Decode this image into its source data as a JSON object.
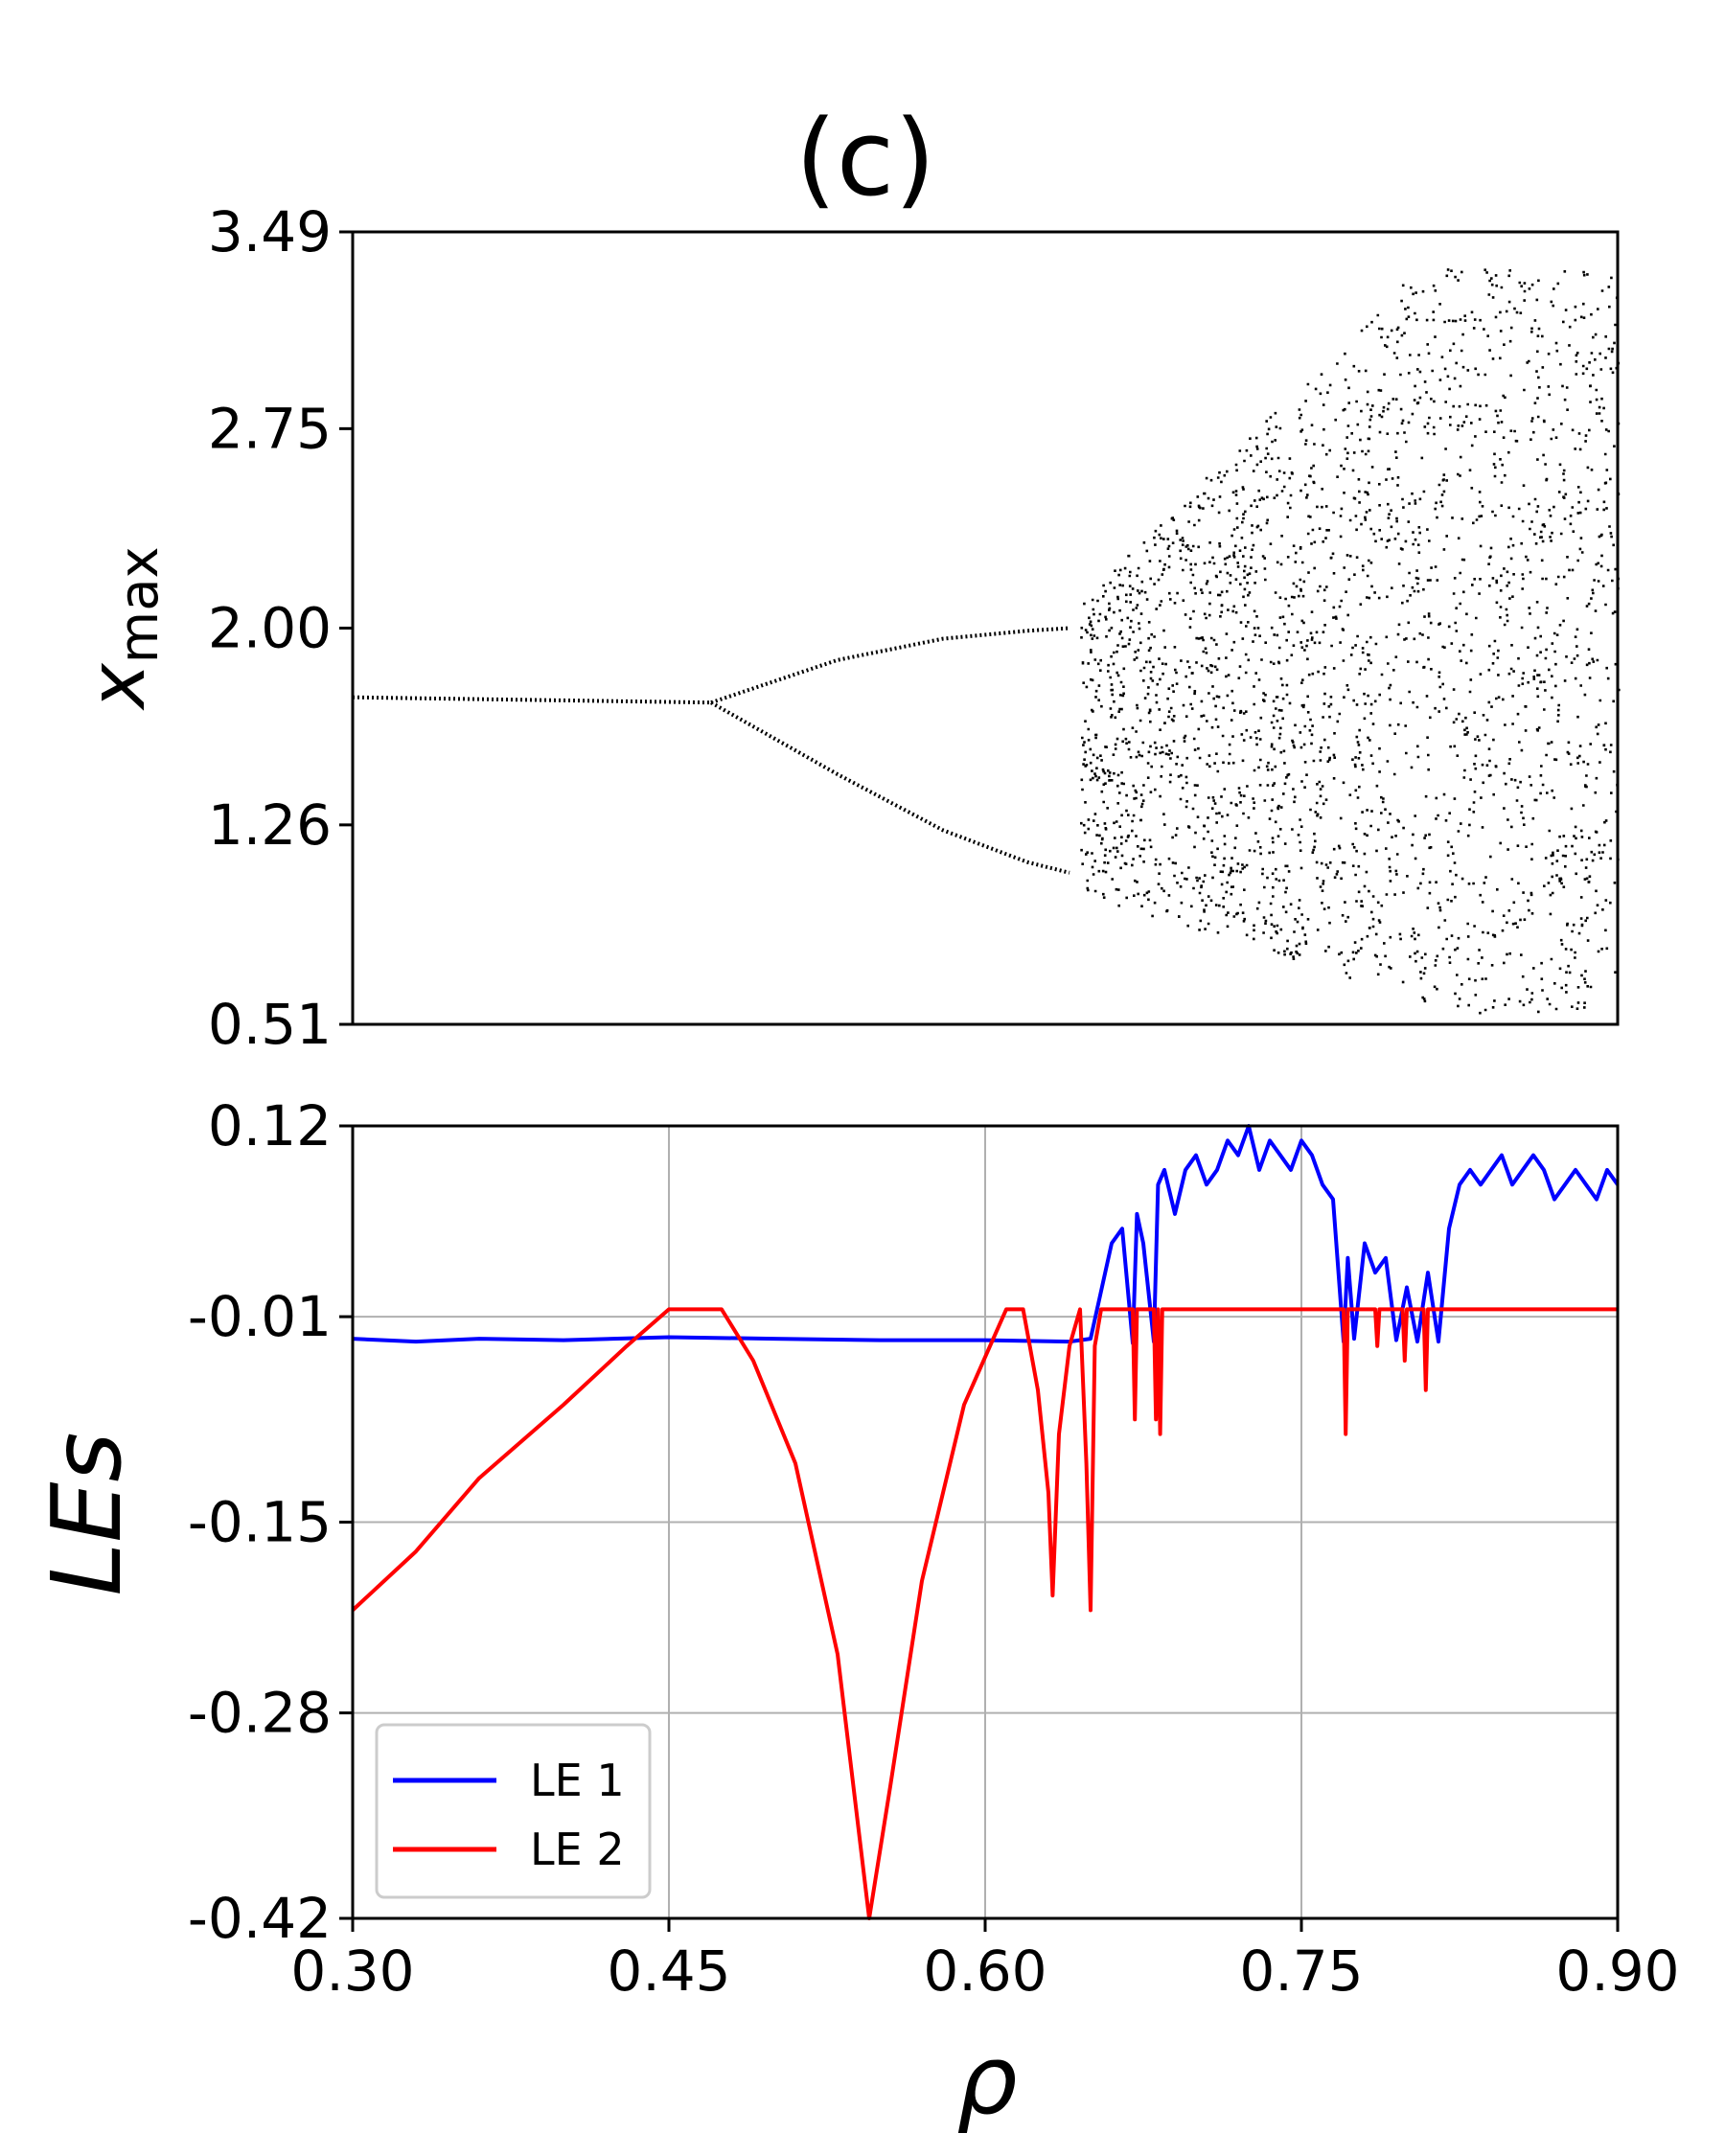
{
  "title": "(c)",
  "colors": {
    "le1": "#0000ff",
    "le2": "#ff0000",
    "points": "#000000",
    "grid": "#b0b0b0"
  },
  "chart_data": [
    {
      "type": "scatter",
      "name": "bifurcation",
      "xlabel": "",
      "ylabel_main": "x",
      "ylabel_sub": "max",
      "xlim": [
        0.3,
        0.9
      ],
      "ylim": [
        0.51,
        3.49
      ],
      "yticks": [
        "3.49",
        "2.75",
        "2.00",
        "1.26",
        "0.51"
      ],
      "ytick_values": [
        3.49,
        2.75,
        2.0,
        1.26,
        0.51
      ],
      "grid": false,
      "branches": [
        {
          "x": [
            0.3,
            0.47
          ],
          "y": [
            1.74,
            1.72
          ]
        },
        {
          "x": [
            0.47,
            0.53,
            0.58,
            0.62,
            0.64
          ],
          "y": [
            1.72,
            1.88,
            1.96,
            1.99,
            2.0
          ]
        },
        {
          "x": [
            0.47,
            0.53,
            0.58,
            0.62,
            0.64
          ],
          "y": [
            1.72,
            1.45,
            1.24,
            1.12,
            1.08
          ]
        }
      ],
      "chaos_region": {
        "x_start": 0.645,
        "x_end": 0.9,
        "y_range": [
          0.55,
          3.35
        ]
      }
    },
    {
      "type": "line",
      "name": "lyapunov",
      "xlabel": "ρ",
      "ylabel": "LEs",
      "xlim": [
        0.3,
        0.9
      ],
      "ylim": [
        -0.42,
        0.12
      ],
      "xticks": [
        "0.30",
        "0.45",
        "0.60",
        "0.75",
        "0.90"
      ],
      "xtick_values": [
        0.3,
        0.45,
        0.6,
        0.75,
        0.9
      ],
      "yticks": [
        "0.12",
        "-0.01",
        "-0.15",
        "-0.28",
        "-0.42"
      ],
      "ytick_values": [
        0.12,
        -0.01,
        -0.15,
        -0.28,
        -0.42
      ],
      "grid": true,
      "legend_position": "lower-left",
      "series": [
        {
          "name": "LE 1",
          "x": [
            0.3,
            0.33,
            0.36,
            0.4,
            0.45,
            0.5,
            0.55,
            0.6,
            0.64,
            0.65,
            0.66,
            0.665,
            0.67,
            0.672,
            0.675,
            0.68,
            0.682,
            0.685,
            0.69,
            0.695,
            0.7,
            0.705,
            0.71,
            0.715,
            0.72,
            0.725,
            0.73,
            0.735,
            0.74,
            0.745,
            0.75,
            0.755,
            0.76,
            0.765,
            0.77,
            0.772,
            0.775,
            0.78,
            0.785,
            0.79,
            0.795,
            0.8,
            0.805,
            0.81,
            0.815,
            0.82,
            0.825,
            0.83,
            0.835,
            0.84,
            0.845,
            0.85,
            0.855,
            0.86,
            0.865,
            0.87,
            0.875,
            0.88,
            0.885,
            0.89,
            0.895,
            0.9
          ],
          "y": [
            -0.025,
            -0.027,
            -0.025,
            -0.026,
            -0.024,
            -0.025,
            -0.026,
            -0.026,
            -0.027,
            -0.025,
            0.04,
            0.05,
            -0.028,
            0.06,
            0.04,
            -0.027,
            0.08,
            0.09,
            0.06,
            0.09,
            0.1,
            0.08,
            0.09,
            0.11,
            0.1,
            0.12,
            0.09,
            0.11,
            0.1,
            0.09,
            0.11,
            0.1,
            0.08,
            0.07,
            -0.027,
            0.03,
            -0.025,
            0.04,
            0.02,
            0.03,
            -0.026,
            0.01,
            -0.027,
            0.02,
            -0.027,
            0.05,
            0.08,
            0.09,
            0.08,
            0.09,
            0.1,
            0.08,
            0.09,
            0.1,
            0.09,
            0.07,
            0.08,
            0.09,
            0.08,
            0.07,
            0.09,
            0.08
          ]
        },
        {
          "name": "LE 2",
          "x": [
            0.3,
            0.33,
            0.36,
            0.4,
            0.43,
            0.45,
            0.475,
            0.49,
            0.51,
            0.53,
            0.545,
            0.555,
            0.57,
            0.59,
            0.61,
            0.618,
            0.625,
            0.63,
            0.632,
            0.635,
            0.64,
            0.645,
            0.648,
            0.65,
            0.652,
            0.655,
            0.67,
            0.671,
            0.672,
            0.68,
            0.681,
            0.682,
            0.683,
            0.684,
            0.685,
            0.77,
            0.771,
            0.772,
            0.785,
            0.786,
            0.787,
            0.798,
            0.799,
            0.8,
            0.808,
            0.809,
            0.81,
            0.9
          ],
          "y": [
            -0.21,
            -0.17,
            -0.12,
            -0.07,
            -0.03,
            -0.005,
            -0.005,
            -0.04,
            -0.11,
            -0.24,
            -0.42,
            -0.33,
            -0.19,
            -0.07,
            -0.005,
            -0.005,
            -0.06,
            -0.13,
            -0.2,
            -0.09,
            -0.03,
            -0.005,
            -0.11,
            -0.21,
            -0.03,
            -0.005,
            -0.005,
            -0.08,
            -0.005,
            -0.005,
            -0.08,
            -0.005,
            -0.09,
            -0.005,
            -0.005,
            -0.005,
            -0.09,
            -0.005,
            -0.005,
            -0.03,
            -0.005,
            -0.005,
            -0.04,
            -0.005,
            -0.005,
            -0.06,
            -0.005,
            -0.005
          ]
        }
      ]
    }
  ]
}
